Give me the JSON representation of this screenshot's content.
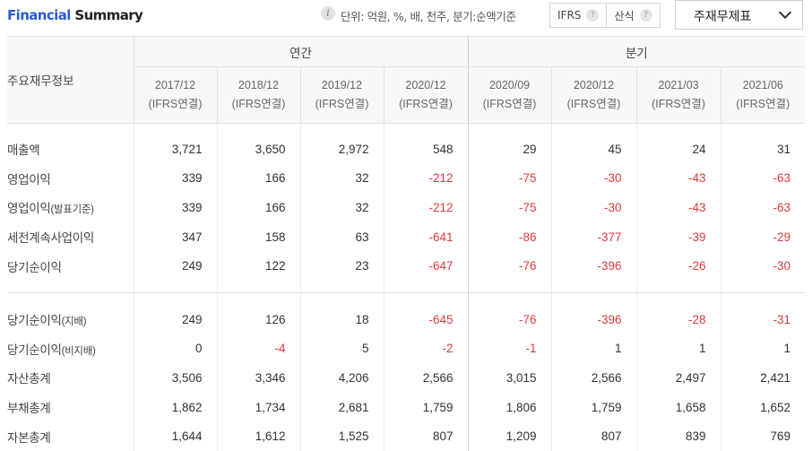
{
  "header": {
    "title_part1": "Financial",
    "title_part2": "Summary",
    "info_icon": "info-icon",
    "unit_text": "단위: 억원, %, 배, 천주, 분기:순액기준",
    "ifrs_label": "IFRS",
    "calc_label": "산식",
    "help_glyph": "?",
    "select_value": "주재무제표"
  },
  "table": {
    "corner_label": "주요재무정보",
    "annual_label": "연간",
    "quarter_label": "분기",
    "columns": [
      {
        "date": "2017/12",
        "basis": "(IFRS연결)"
      },
      {
        "date": "2018/12",
        "basis": "(IFRS연결)"
      },
      {
        "date": "2019/12",
        "basis": "(IFRS연결)"
      },
      {
        "date": "2020/12",
        "basis": "(IFRS연결)"
      },
      {
        "date": "2020/09",
        "basis": "(IFRS연결)"
      },
      {
        "date": "2020/12",
        "basis": "(IFRS연결)"
      },
      {
        "date": "2021/03",
        "basis": "(IFRS연결)"
      },
      {
        "date": "2021/06",
        "basis": "(IFRS연결)"
      }
    ],
    "group1": [
      {
        "label": "매출액",
        "sub": "",
        "values": [
          "3,721",
          "3,650",
          "2,972",
          "548",
          "29",
          "45",
          "24",
          "31"
        ]
      },
      {
        "label": "영업이익",
        "sub": "",
        "values": [
          "339",
          "166",
          "32",
          "-212",
          "-75",
          "-30",
          "-43",
          "-63"
        ]
      },
      {
        "label": "영업이익",
        "sub": "(발표기준)",
        "values": [
          "339",
          "166",
          "32",
          "-212",
          "-75",
          "-30",
          "-43",
          "-63"
        ]
      },
      {
        "label": "세전계속사업이익",
        "sub": "",
        "values": [
          "347",
          "158",
          "63",
          "-641",
          "-86",
          "-377",
          "-39",
          "-29"
        ]
      },
      {
        "label": "당기순이익",
        "sub": "",
        "values": [
          "249",
          "122",
          "23",
          "-647",
          "-76",
          "-396",
          "-26",
          "-30"
        ]
      }
    ],
    "group2": [
      {
        "label": "당기순이익",
        "sub": "(지배)",
        "values": [
          "249",
          "126",
          "18",
          "-645",
          "-76",
          "-396",
          "-28",
          "-31"
        ]
      },
      {
        "label": "당기순이익",
        "sub": "(비지배)",
        "values": [
          "0",
          "-4",
          "5",
          "-2",
          "-1",
          "1",
          "1",
          "1"
        ]
      },
      {
        "label": "자산총계",
        "sub": "",
        "values": [
          "3,506",
          "3,346",
          "4,206",
          "2,566",
          "3,015",
          "2,566",
          "2,497",
          "2,421"
        ]
      },
      {
        "label": "부채총계",
        "sub": "",
        "values": [
          "1,862",
          "1,734",
          "2,681",
          "1,759",
          "1,806",
          "1,759",
          "1,658",
          "1,652"
        ]
      },
      {
        "label": "자본총계",
        "sub": "",
        "values": [
          "1,644",
          "1,612",
          "1,525",
          "807",
          "1,209",
          "807",
          "839",
          "769"
        ]
      }
    ]
  },
  "colors": {
    "title_blue": "#2a5bd7",
    "negative_red": "#e03a3a",
    "header_bg": "#f8f8f8"
  }
}
